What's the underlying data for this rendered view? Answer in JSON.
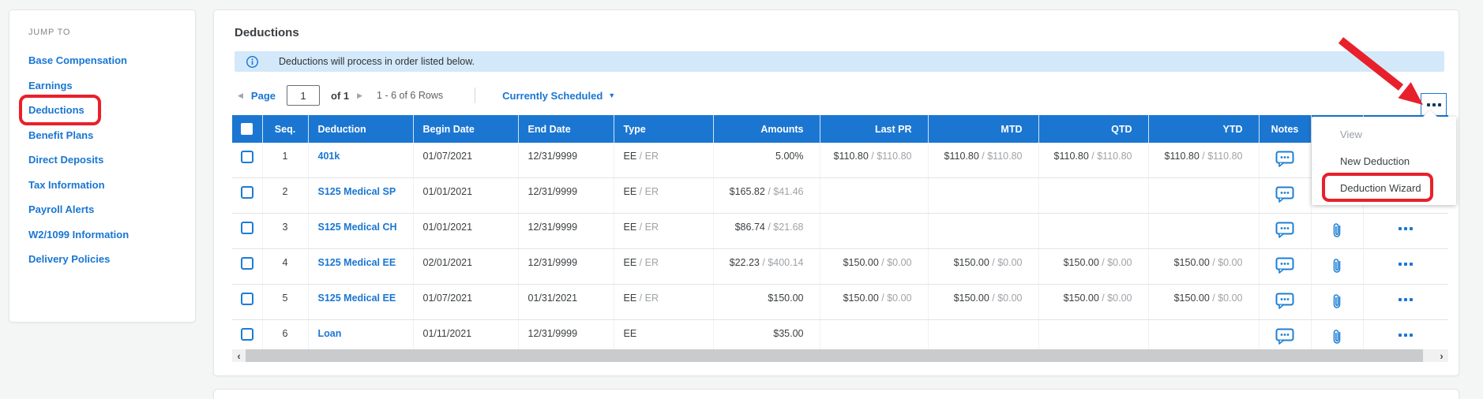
{
  "sidebar": {
    "heading": "JUMP TO",
    "items": [
      {
        "label": "Base Compensation",
        "highlighted": false
      },
      {
        "label": "Earnings",
        "highlighted": false
      },
      {
        "label": "Deductions",
        "highlighted": true
      },
      {
        "label": "Benefit Plans",
        "highlighted": false
      },
      {
        "label": "Direct Deposits",
        "highlighted": false
      },
      {
        "label": "Tax Information",
        "highlighted": false
      },
      {
        "label": "Payroll Alerts",
        "highlighted": false
      },
      {
        "label": "W2/1099 Information",
        "highlighted": false
      },
      {
        "label": "Delivery Policies",
        "highlighted": false
      }
    ]
  },
  "header": {
    "title": "Deductions"
  },
  "banner": {
    "text": "Deductions will process in order listed below."
  },
  "pagination": {
    "page_label": "Page",
    "page_value": "1",
    "of_label": "of 1",
    "rows_label": "1 - 6 of 6 Rows",
    "filter_label": "Currently Scheduled"
  },
  "table": {
    "columns": [
      "",
      "Seq.",
      "Deduction",
      "Begin Date",
      "End Date",
      "Type",
      "Amounts",
      "Last PR",
      "MTD",
      "QTD",
      "YTD",
      "Notes",
      "",
      ""
    ],
    "rows": [
      {
        "seq": "1",
        "name": "401k",
        "begin": "01/07/2021",
        "end": "12/31/9999",
        "type": "EE",
        "type2": " / ER",
        "amt": "5.00%",
        "amt2": "",
        "pr": "$110.80",
        "pr2": " / $110.80",
        "mtd": "$110.80",
        "mtd2": " / $110.80",
        "qtd": "$110.80",
        "qtd2": " / $110.80",
        "ytd": "$110.80",
        "ytd2": " / $110.80"
      },
      {
        "seq": "2",
        "name": "S125 Medical SP",
        "begin": "01/01/2021",
        "end": "12/31/9999",
        "type": "EE",
        "type2": " / ER",
        "amt": "$165.82",
        "amt2": " / $41.46",
        "pr": "",
        "pr2": "",
        "mtd": "",
        "mtd2": "",
        "qtd": "",
        "qtd2": "",
        "ytd": "",
        "ytd2": ""
      },
      {
        "seq": "3",
        "name": "S125 Medical CH",
        "begin": "01/01/2021",
        "end": "12/31/9999",
        "type": "EE",
        "type2": " / ER",
        "amt": "$86.74",
        "amt2": " / $21.68",
        "pr": "",
        "pr2": "",
        "mtd": "",
        "mtd2": "",
        "qtd": "",
        "qtd2": "",
        "ytd": "",
        "ytd2": ""
      },
      {
        "seq": "4",
        "name": "S125 Medical EE",
        "begin": "02/01/2021",
        "end": "12/31/9999",
        "type": "EE",
        "type2": " / ER",
        "amt": "$22.23",
        "amt2": " / $400.14",
        "pr": "$150.00",
        "pr2": " / $0.00",
        "mtd": "$150.00",
        "mtd2": " / $0.00",
        "qtd": "$150.00",
        "qtd2": " / $0.00",
        "ytd": "$150.00",
        "ytd2": " / $0.00"
      },
      {
        "seq": "5",
        "name": "S125 Medical EE",
        "begin": "01/07/2021",
        "end": "01/31/2021",
        "type": "EE",
        "type2": " / ER",
        "amt": "$150.00",
        "amt2": "",
        "pr": "$150.00",
        "pr2": " / $0.00",
        "mtd": "$150.00",
        "mtd2": " / $0.00",
        "qtd": "$150.00",
        "qtd2": " / $0.00",
        "ytd": "$150.00",
        "ytd2": " / $0.00"
      },
      {
        "seq": "6",
        "name": "Loan",
        "begin": "01/11/2021",
        "end": "12/31/9999",
        "type": "EE",
        "type2": "",
        "amt": "$35.00",
        "amt2": "",
        "pr": "",
        "pr2": "",
        "mtd": "",
        "mtd2": "",
        "qtd": "",
        "qtd2": "",
        "ytd": "",
        "ytd2": ""
      }
    ]
  },
  "menu": {
    "items": [
      {
        "label": "View",
        "disabled": true,
        "highlighted": false
      },
      {
        "label": "New Deduction",
        "disabled": false,
        "highlighted": false
      },
      {
        "label": "Deduction Wizard",
        "disabled": false,
        "highlighted": true
      }
    ]
  },
  "icons": {
    "info": "info-circle-icon",
    "notes": "comment-icon",
    "attachment": "paperclip-icon",
    "more": "ellipsis-icon"
  },
  "colors": {
    "accent_blue": "#1976d2",
    "table_header_blue": "#1b76d2",
    "banner_bg": "#d3e9fa",
    "annotation_red": "#e8202b"
  }
}
